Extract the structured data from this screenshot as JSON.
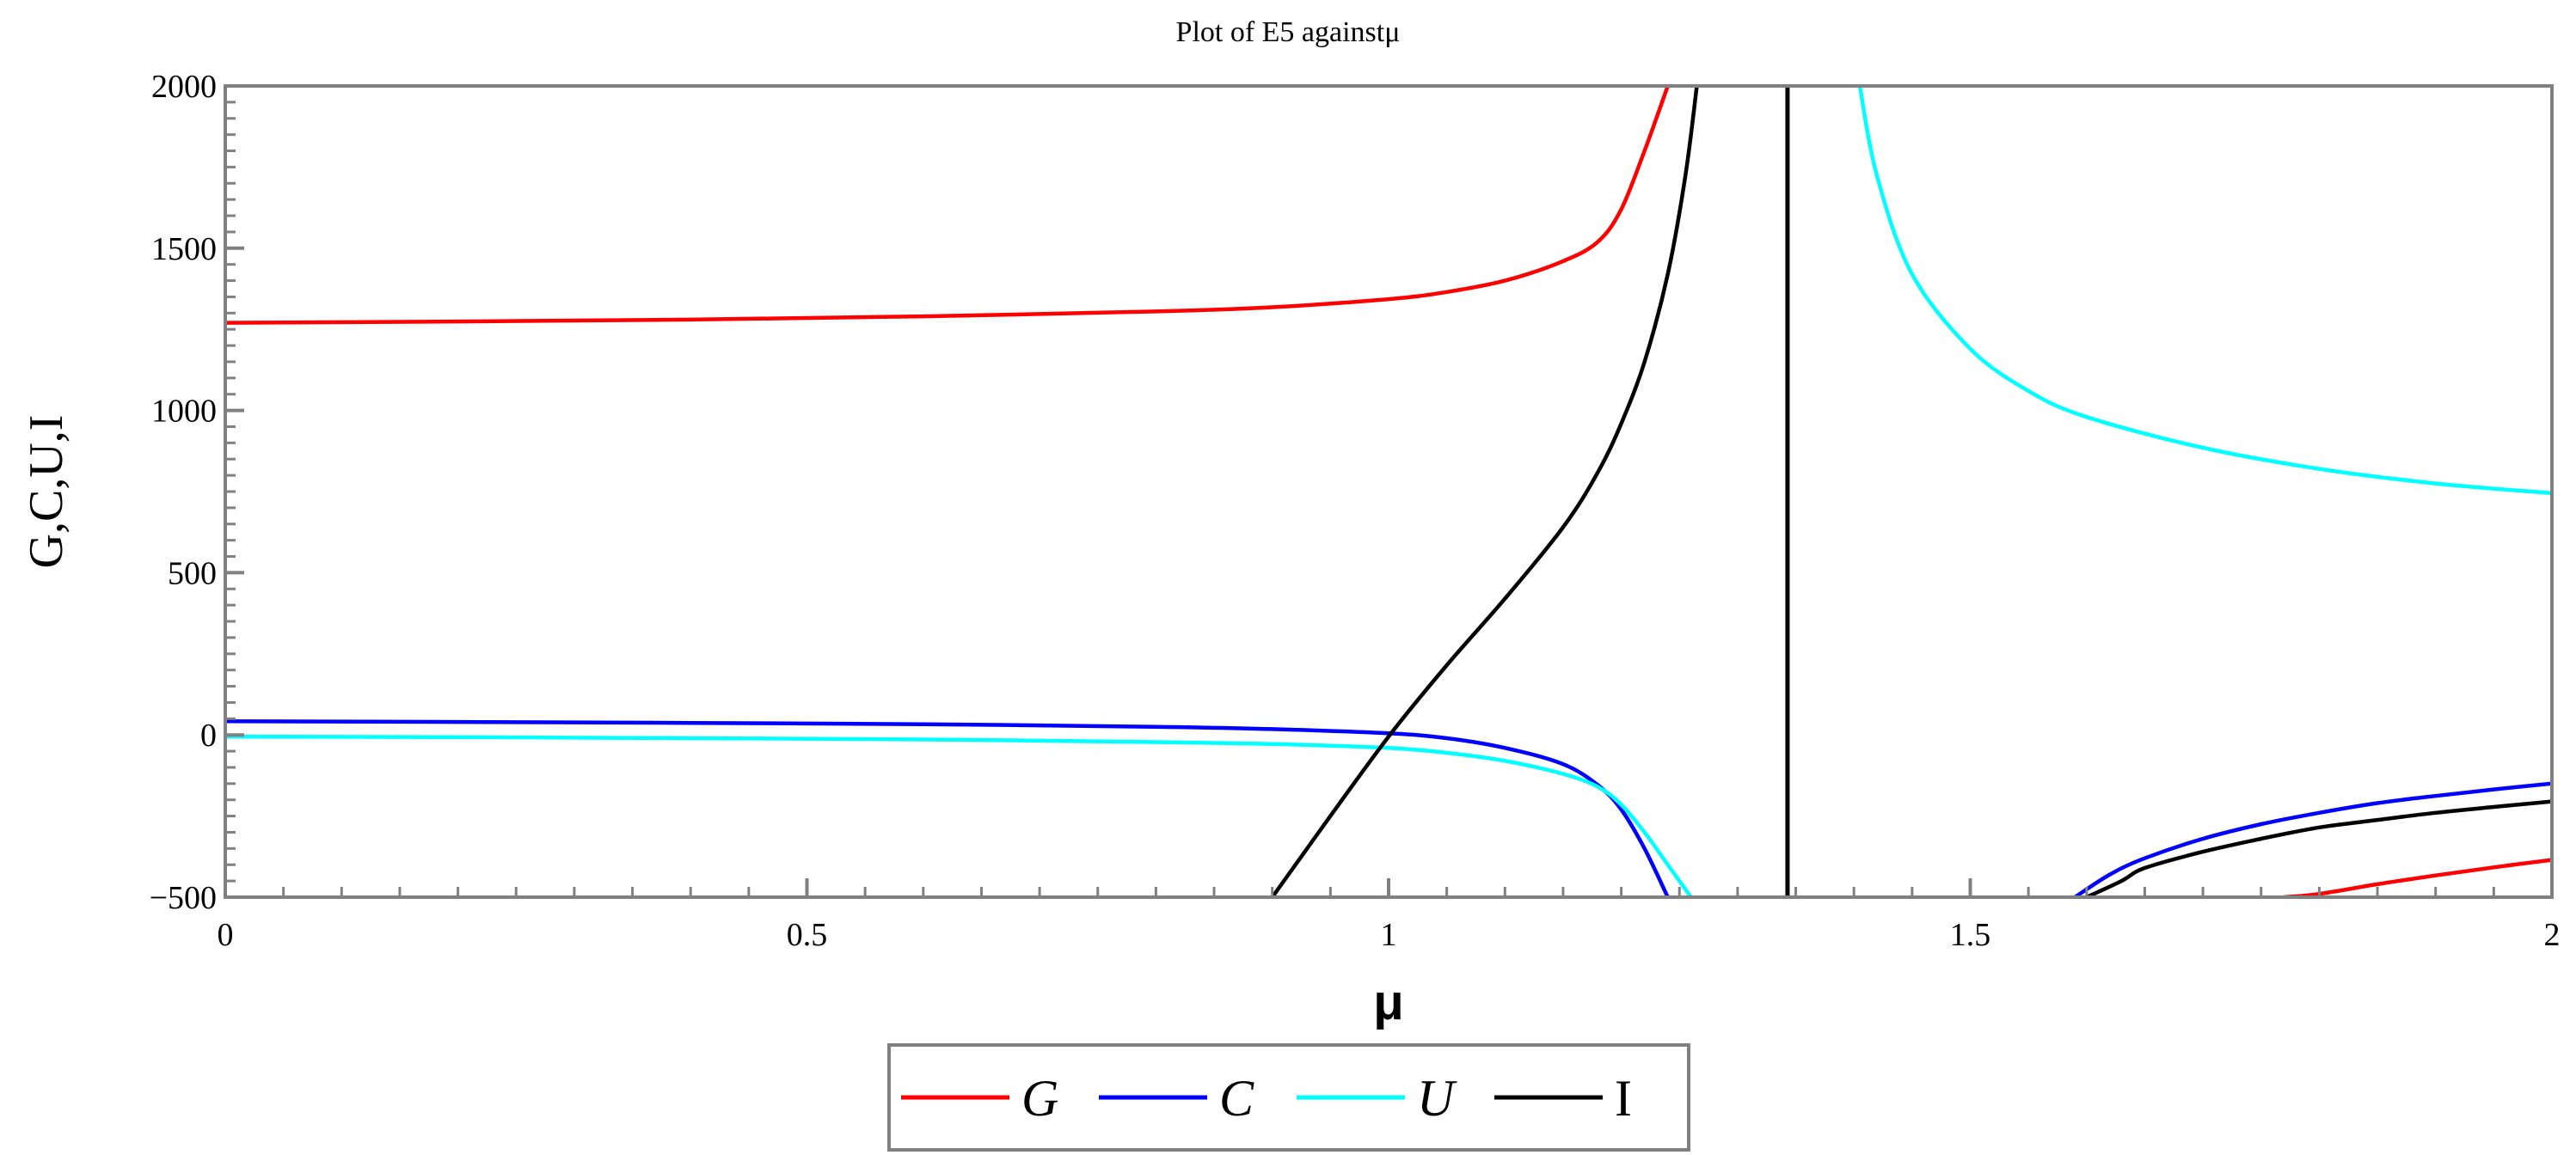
{
  "chart_data": {
    "type": "line",
    "title": "Plot of E5 againstμ",
    "xlabel": "μ",
    "ylabel": "G,C,U,I",
    "xlim": [
      0,
      2
    ],
    "ylim": [
      -500,
      2000
    ],
    "x_ticks": [
      0,
      0.5,
      1,
      1.5,
      2
    ],
    "x_tick_labels": [
      "0",
      "0.5",
      "1",
      "1.5",
      "2"
    ],
    "y_ticks": [
      -500,
      0,
      500,
      1000,
      1500,
      2000
    ],
    "y_tick_labels": [
      "−500",
      "0",
      "500",
      "1000",
      "1500",
      "2000"
    ],
    "grid": false,
    "legend_position": "bottom-center",
    "vertical_asymptote": 1.3429,
    "series": [
      {
        "name": "G",
        "color": "#ff0000",
        "segments": [
          [
            [
              0,
              1270
            ],
            [
              0.2,
              1274
            ],
            [
              0.4,
              1280
            ],
            [
              0.6,
              1290
            ],
            [
              0.8,
              1305
            ],
            [
              0.9,
              1318
            ],
            [
              1.0,
              1343
            ],
            [
              1.05,
              1365
            ],
            [
              1.1,
              1400
            ],
            [
              1.15,
              1460
            ],
            [
              1.18,
              1520
            ],
            [
              1.2,
              1620
            ],
            [
              1.22,
              1800
            ],
            [
              1.24,
              2000
            ]
          ],
          [
            [
              1.77,
              -500
            ],
            [
              1.8,
              -490
            ],
            [
              1.85,
              -460
            ],
            [
              1.9,
              -433
            ],
            [
              1.95,
              -408
            ],
            [
              2.0,
              -385
            ]
          ]
        ]
      },
      {
        "name": "C",
        "color": "#0000ff",
        "segments": [
          [
            [
              0,
              42
            ],
            [
              0.2,
              40
            ],
            [
              0.4,
              37
            ],
            [
              0.6,
              33
            ],
            [
              0.8,
              25
            ],
            [
              0.9,
              18
            ],
            [
              1.0,
              5
            ],
            [
              1.05,
              -10
            ],
            [
              1.1,
              -40
            ],
            [
              1.15,
              -90
            ],
            [
              1.18,
              -155
            ],
            [
              1.2,
              -230
            ],
            [
              1.22,
              -350
            ],
            [
              1.24,
              -500
            ]
          ],
          [
            [
              1.59,
              -500
            ],
            [
              1.62,
              -430
            ],
            [
              1.65,
              -380
            ],
            [
              1.7,
              -320
            ],
            [
              1.75,
              -275
            ],
            [
              1.8,
              -240
            ],
            [
              1.85,
              -210
            ],
            [
              1.9,
              -188
            ],
            [
              1.95,
              -168
            ],
            [
              2.0,
              -150
            ]
          ]
        ]
      },
      {
        "name": "U",
        "color": "#00ffff",
        "segments": [
          [
            [
              0,
              -5
            ],
            [
              0.2,
              -7
            ],
            [
              0.4,
              -10
            ],
            [
              0.6,
              -14
            ],
            [
              0.8,
              -22
            ],
            [
              0.9,
              -28
            ],
            [
              1.0,
              -40
            ],
            [
              1.05,
              -55
            ],
            [
              1.1,
              -80
            ],
            [
              1.15,
              -120
            ],
            [
              1.18,
              -160
            ],
            [
              1.2,
              -215
            ],
            [
              1.22,
              -300
            ],
            [
              1.24,
              -400
            ],
            [
              1.26,
              -500
            ]
          ],
          [
            [
              1.405,
              2000
            ],
            [
              1.42,
              1720
            ],
            [
              1.45,
              1420
            ],
            [
              1.5,
              1190
            ],
            [
              1.55,
              1060
            ],
            [
              1.6,
              980
            ],
            [
              1.7,
              885
            ],
            [
              1.8,
              820
            ],
            [
              1.9,
              775
            ],
            [
              2.0,
              745
            ]
          ]
        ]
      },
      {
        "name": "I",
        "color": "#000000",
        "segments": [
          [
            [
              0.9,
              -500
            ],
            [
              0.95,
              -250
            ],
            [
              1.0,
              -5
            ],
            [
              1.05,
              215
            ],
            [
              1.1,
              420
            ],
            [
              1.15,
              640
            ],
            [
              1.18,
              810
            ],
            [
              1.2,
              960
            ],
            [
              1.22,
              1150
            ],
            [
              1.24,
              1420
            ],
            [
              1.255,
              1720
            ],
            [
              1.265,
              2000
            ]
          ],
          [
            [
              1.6,
              -500
            ],
            [
              1.63,
              -450
            ],
            [
              1.65,
              -410
            ],
            [
              1.7,
              -360
            ],
            [
              1.75,
              -320
            ],
            [
              1.8,
              -285
            ],
            [
              1.85,
              -262
            ],
            [
              1.9,
              -240
            ],
            [
              1.95,
              -222
            ],
            [
              2.0,
              -205
            ]
          ]
        ]
      }
    ]
  }
}
